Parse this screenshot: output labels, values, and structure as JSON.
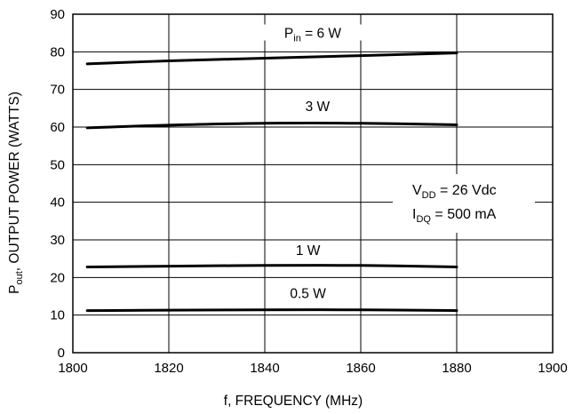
{
  "chart_data": {
    "type": "line",
    "xlabel": "f, FREQUENCY (MHz)",
    "ylabel": {
      "main": "P",
      "sub": "out",
      "rest": ", OUTPUT POWER (WATTS)"
    },
    "xlim": [
      1800,
      1900
    ],
    "ylim": [
      0,
      90
    ],
    "xticks": [
      1800,
      1820,
      1840,
      1860,
      1880,
      1900
    ],
    "yticks": [
      0,
      10,
      20,
      30,
      40,
      50,
      60,
      70,
      80,
      90
    ],
    "grid": true,
    "conditions": [
      {
        "main": "V",
        "sub": "DD",
        "rest": " = 26 Vdc"
      },
      {
        "main": "I",
        "sub": "DQ",
        "rest": " = 500 mA"
      }
    ],
    "series": [
      {
        "label_main": "P",
        "label_sub": "in",
        "label_rest": " = 6 W",
        "x": [
          1803,
          1820,
          1840,
          1860,
          1880
        ],
        "y": [
          76.8,
          77.6,
          78.3,
          79.0,
          79.7
        ]
      },
      {
        "label_main": "",
        "label_sub": "",
        "label_rest": "3 W",
        "x": [
          1803,
          1820,
          1840,
          1860,
          1880
        ],
        "y": [
          59.8,
          60.5,
          61.0,
          61.0,
          60.6
        ]
      },
      {
        "label_main": "",
        "label_sub": "",
        "label_rest": "1 W",
        "x": [
          1803,
          1820,
          1840,
          1860,
          1880
        ],
        "y": [
          22.8,
          23.0,
          23.2,
          23.2,
          22.8
        ]
      },
      {
        "label_main": "",
        "label_sub": "",
        "label_rest": "0.5 W",
        "x": [
          1803,
          1820,
          1840,
          1860,
          1880
        ],
        "y": [
          11.2,
          11.3,
          11.4,
          11.4,
          11.2
        ]
      }
    ]
  }
}
